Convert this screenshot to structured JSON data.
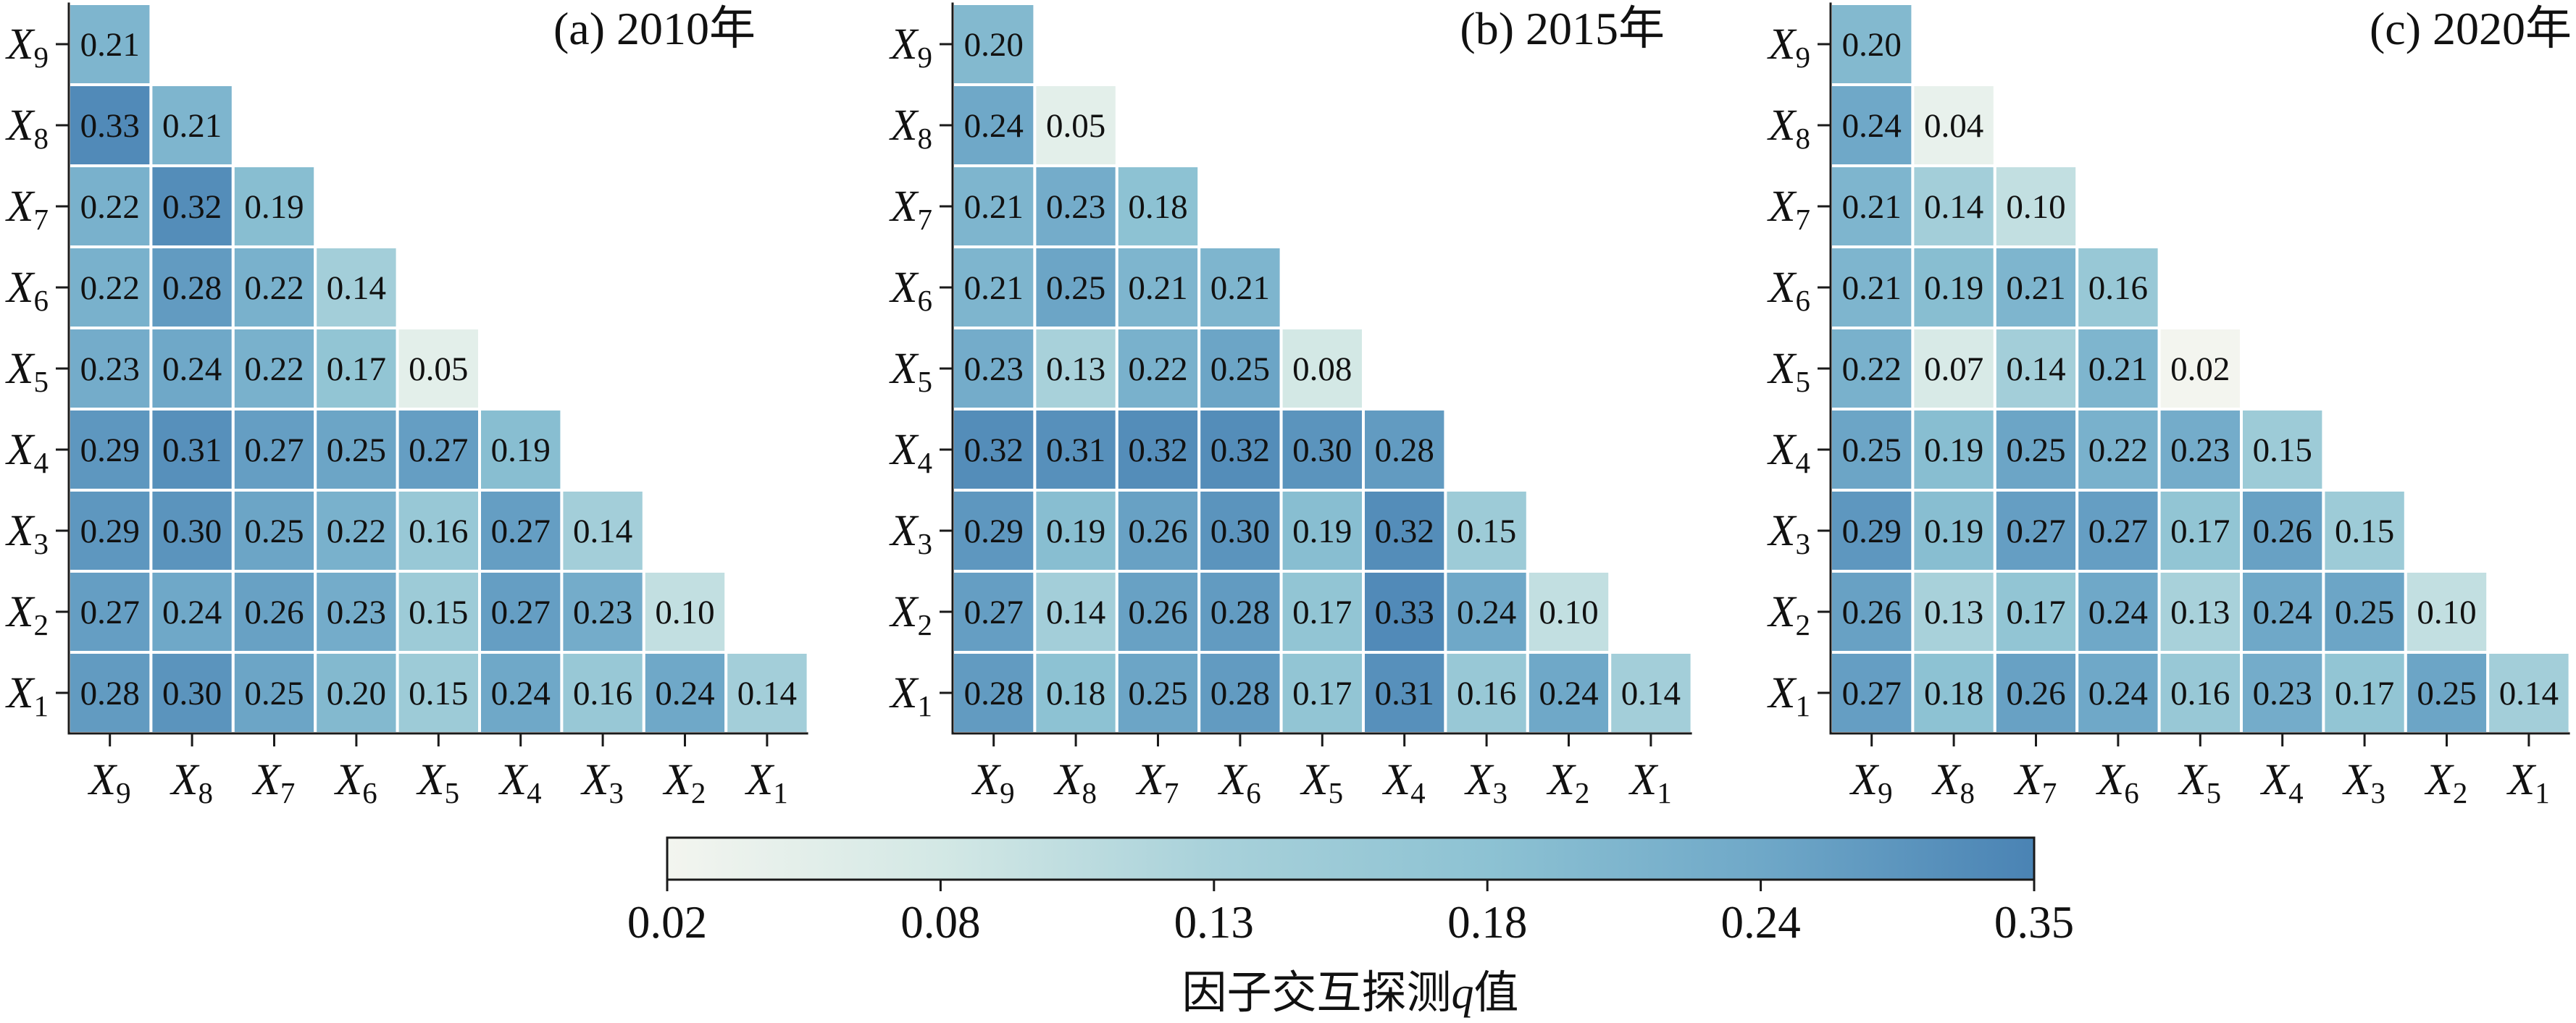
{
  "chart_data": [
    {
      "type": "heatmap",
      "title": "(a) 2010年",
      "row_labels": [
        {
          "var": "X",
          "sub": "9"
        },
        {
          "var": "X",
          "sub": "8"
        },
        {
          "var": "X",
          "sub": "7"
        },
        {
          "var": "X",
          "sub": "6"
        },
        {
          "var": "X",
          "sub": "5"
        },
        {
          "var": "X",
          "sub": "4"
        },
        {
          "var": "X",
          "sub": "3"
        },
        {
          "var": "X",
          "sub": "2"
        },
        {
          "var": "X",
          "sub": "1"
        }
      ],
      "col_labels": [
        {
          "var": "X",
          "sub": "9"
        },
        {
          "var": "X",
          "sub": "8"
        },
        {
          "var": "X",
          "sub": "7"
        },
        {
          "var": "X",
          "sub": "6"
        },
        {
          "var": "X",
          "sub": "5"
        },
        {
          "var": "X",
          "sub": "4"
        },
        {
          "var": "X",
          "sub": "3"
        },
        {
          "var": "X",
          "sub": "2"
        },
        {
          "var": "X",
          "sub": "1"
        }
      ],
      "values": [
        [
          0.21
        ],
        [
          0.33,
          0.21
        ],
        [
          0.22,
          0.32,
          0.19
        ],
        [
          0.22,
          0.28,
          0.22,
          0.14
        ],
        [
          0.23,
          0.24,
          0.22,
          0.17,
          0.05
        ],
        [
          0.29,
          0.31,
          0.27,
          0.25,
          0.27,
          0.19
        ],
        [
          0.29,
          0.3,
          0.25,
          0.22,
          0.16,
          0.27,
          0.14
        ],
        [
          0.27,
          0.24,
          0.26,
          0.23,
          0.15,
          0.27,
          0.23,
          0.1
        ],
        [
          0.28,
          0.3,
          0.25,
          0.2,
          0.15,
          0.24,
          0.16,
          0.24,
          0.14
        ]
      ]
    },
    {
      "type": "heatmap",
      "title": "(b) 2015年",
      "row_labels": [
        {
          "var": "X",
          "sub": "9"
        },
        {
          "var": "X",
          "sub": "8"
        },
        {
          "var": "X",
          "sub": "7"
        },
        {
          "var": "X",
          "sub": "6"
        },
        {
          "var": "X",
          "sub": "5"
        },
        {
          "var": "X",
          "sub": "4"
        },
        {
          "var": "X",
          "sub": "3"
        },
        {
          "var": "X",
          "sub": "2"
        },
        {
          "var": "X",
          "sub": "1"
        }
      ],
      "col_labels": [
        {
          "var": "X",
          "sub": "9"
        },
        {
          "var": "X",
          "sub": "8"
        },
        {
          "var": "X",
          "sub": "7"
        },
        {
          "var": "X",
          "sub": "6"
        },
        {
          "var": "X",
          "sub": "5"
        },
        {
          "var": "X",
          "sub": "4"
        },
        {
          "var": "X",
          "sub": "3"
        },
        {
          "var": "X",
          "sub": "2"
        },
        {
          "var": "X",
          "sub": "1"
        }
      ],
      "values": [
        [
          0.2
        ],
        [
          0.24,
          0.05
        ],
        [
          0.21,
          0.23,
          0.18
        ],
        [
          0.21,
          0.25,
          0.21,
          0.21
        ],
        [
          0.23,
          0.13,
          0.22,
          0.25,
          0.08
        ],
        [
          0.32,
          0.31,
          0.32,
          0.32,
          0.3,
          0.28
        ],
        [
          0.29,
          0.19,
          0.26,
          0.3,
          0.19,
          0.32,
          0.15
        ],
        [
          0.27,
          0.14,
          0.26,
          0.28,
          0.17,
          0.33,
          0.24,
          0.1
        ],
        [
          0.28,
          0.18,
          0.25,
          0.28,
          0.17,
          0.31,
          0.16,
          0.24,
          0.14
        ]
      ]
    },
    {
      "type": "heatmap",
      "title": "(c) 2020年",
      "row_labels": [
        {
          "var": "X",
          "sub": "9"
        },
        {
          "var": "X",
          "sub": "8"
        },
        {
          "var": "X",
          "sub": "7"
        },
        {
          "var": "X",
          "sub": "6"
        },
        {
          "var": "X",
          "sub": "5"
        },
        {
          "var": "X",
          "sub": "4"
        },
        {
          "var": "X",
          "sub": "3"
        },
        {
          "var": "X",
          "sub": "2"
        },
        {
          "var": "X",
          "sub": "1"
        }
      ],
      "col_labels": [
        {
          "var": "X",
          "sub": "9"
        },
        {
          "var": "X",
          "sub": "8"
        },
        {
          "var": "X",
          "sub": "7"
        },
        {
          "var": "X",
          "sub": "6"
        },
        {
          "var": "X",
          "sub": "5"
        },
        {
          "var": "X",
          "sub": "4"
        },
        {
          "var": "X",
          "sub": "3"
        },
        {
          "var": "X",
          "sub": "2"
        },
        {
          "var": "X",
          "sub": "1"
        }
      ],
      "values": [
        [
          0.2
        ],
        [
          0.24,
          0.04
        ],
        [
          0.21,
          0.14,
          0.1
        ],
        [
          0.21,
          0.19,
          0.21,
          0.16
        ],
        [
          0.22,
          0.07,
          0.14,
          0.21,
          0.02
        ],
        [
          0.25,
          0.19,
          0.25,
          0.22,
          0.23,
          0.15
        ],
        [
          0.29,
          0.19,
          0.27,
          0.27,
          0.17,
          0.26,
          0.15
        ],
        [
          0.26,
          0.13,
          0.17,
          0.24,
          0.13,
          0.24,
          0.25,
          0.1
        ],
        [
          0.27,
          0.18,
          0.26,
          0.24,
          0.16,
          0.23,
          0.17,
          0.25,
          0.14
        ]
      ]
    }
  ],
  "colorbar": {
    "orientation": "horizontal",
    "placement": "bottom-center",
    "ticks": [
      0.02,
      0.08,
      0.13,
      0.18,
      0.24,
      0.35
    ],
    "colors": [
      "#f3f5ef",
      "#d3e8e5",
      "#a8d1da",
      "#8dc2d3",
      "#6fa8c8",
      "#4a83b4"
    ],
    "label": {
      "prefix": "因子交互探测",
      "var": "q",
      "suffix": "值"
    }
  }
}
